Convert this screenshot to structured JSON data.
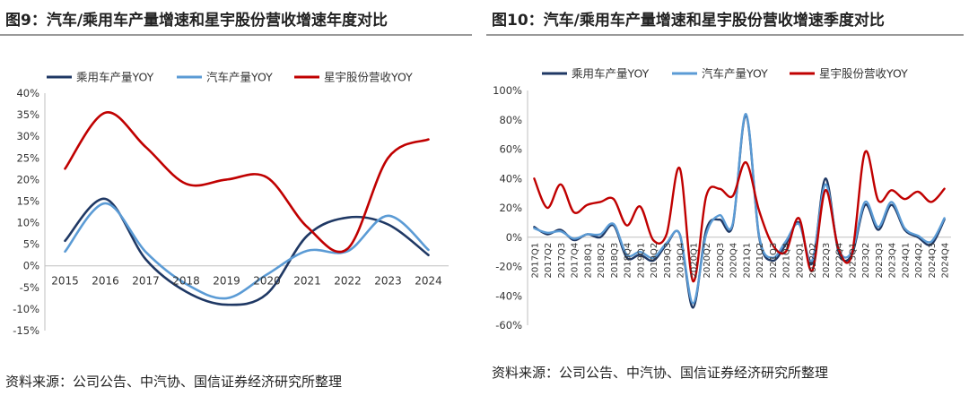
{
  "chart_data": [
    {
      "type": "line",
      "title": "图9：汽车/乘用车产量增速和星宇股份营收增速年度对比",
      "x": [
        "2015",
        "2016",
        "2017",
        "2018",
        "2019",
        "2020",
        "2021",
        "2022",
        "2023",
        "2024"
      ],
      "ylim": [
        -15,
        40
      ],
      "yticks": [
        -15,
        -10,
        -5,
        0,
        5,
        10,
        15,
        20,
        25,
        30,
        35,
        40
      ],
      "ytick_labels": [
        "-15%",
        "-10%",
        "-5%",
        "0%",
        "5%",
        "10%",
        "15%",
        "20%",
        "25%",
        "30%",
        "35%",
        "40%"
      ],
      "legend": "top",
      "grid": false,
      "series": [
        {
          "name": "乘用车产量YOY",
          "color": "#1f3864",
          "values": [
            5.8,
            15.5,
            1.5,
            -6.0,
            -9.0,
            -6.5,
            7.0,
            11.2,
            9.6,
            2.5
          ]
        },
        {
          "name": "汽车产量YOY",
          "color": "#5b9bd5",
          "values": [
            3.3,
            14.5,
            3.2,
            -4.2,
            -7.5,
            -2.0,
            3.5,
            3.4,
            11.6,
            3.7
          ]
        },
        {
          "name": "星宇股份营收YOY",
          "color": "#c00000",
          "values": [
            22.5,
            35.5,
            27.5,
            19.0,
            20.0,
            20.5,
            9.0,
            4.0,
            25.0,
            29.3
          ]
        }
      ],
      "source": "资料来源：公司公告、中汽协、国信证券经济研究所整理"
    },
    {
      "type": "line",
      "title": "图10：汽车/乘用车产量增速和星宇股份营收增速季度对比",
      "x": [
        "2017Q1",
        "2017Q2",
        "2017Q3",
        "2017Q4",
        "2018Q1",
        "2018Q2",
        "2018Q3",
        "2018Q4",
        "2019Q1",
        "2019Q2",
        "2019Q3",
        "2019Q4",
        "2020Q1",
        "2020Q2",
        "2020Q3",
        "2020Q4",
        "2021Q1",
        "2021Q2",
        "2021Q3",
        "2021Q4",
        "2022Q1",
        "2022Q2",
        "2022Q3",
        "2022Q4",
        "2023Q1",
        "2023Q2",
        "2023Q3",
        "2023Q4",
        "2024Q1",
        "2024Q2",
        "2024Q3",
        "2024Q4"
      ],
      "ylim": [
        -60,
        100
      ],
      "yticks": [
        -60,
        -40,
        -20,
        0,
        20,
        40,
        60,
        80,
        100
      ],
      "ytick_labels": [
        "-60%",
        "-40%",
        "-20%",
        "0%",
        "20%",
        "40%",
        "60%",
        "80%",
        "100%"
      ],
      "legend": "top",
      "grid": false,
      "series": [
        {
          "name": "乘用车产量YOY",
          "color": "#1f3864",
          "values": [
            7,
            2,
            5,
            -2,
            2,
            0,
            8,
            -14,
            -12,
            -16,
            -5,
            2,
            -48,
            5,
            12,
            8,
            83,
            0,
            -16,
            -5,
            10,
            -18,
            40,
            -10,
            -12,
            22,
            5,
            22,
            5,
            0,
            -5,
            12
          ]
        },
        {
          "name": "汽车产量YOY",
          "color": "#5b9bd5",
          "values": [
            6,
            3,
            4,
            -1,
            2,
            2,
            9,
            -12,
            -10,
            -14,
            -4,
            2,
            -45,
            2,
            15,
            9,
            84,
            1,
            -14,
            -3,
            9,
            -16,
            36,
            -8,
            -10,
            24,
            7,
            24,
            6,
            1,
            -3,
            13
          ]
        },
        {
          "name": "星宇股份营收YOY",
          "color": "#c00000",
          "values": [
            40,
            20,
            36,
            17,
            22,
            24,
            26,
            8,
            21,
            -2,
            2,
            47,
            -30,
            28,
            33,
            28,
            51,
            18,
            -5,
            -10,
            13,
            -23,
            32,
            -8,
            -12,
            58,
            25,
            32,
            26,
            31,
            24,
            33
          ]
        }
      ],
      "source": "资料来源：公司公告、中汽协、国信证券经济研究所整理"
    }
  ]
}
